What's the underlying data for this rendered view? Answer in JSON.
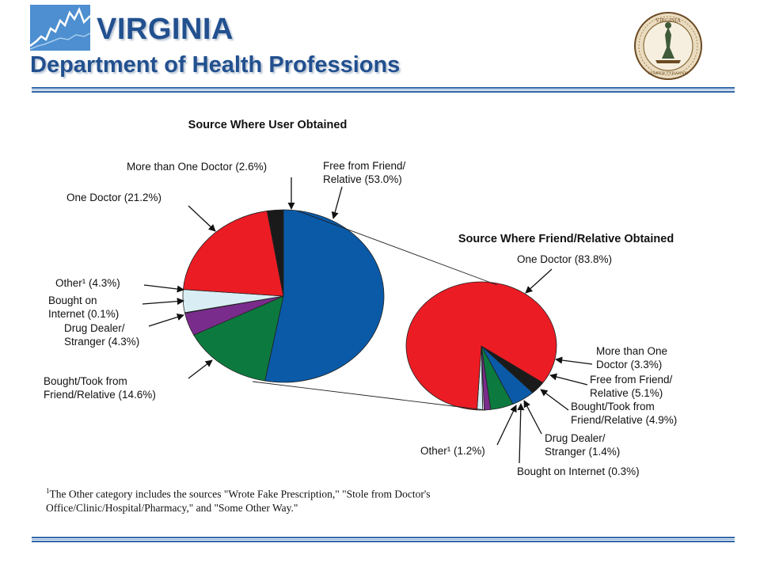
{
  "header": {
    "title": "VIRGINIA",
    "subtitle": "Department of Health Professions",
    "seal_text_top": "VIRGINIA",
    "seal_text_bottom": "SEMPER TYRANNIS"
  },
  "colors": {
    "brand_blue": "#22508f",
    "free_from_friend": "#0a5aa8",
    "one_doctor": "#ec1c24",
    "more_than_one_doctor": "#1a1a1a",
    "other": "#d8eef4",
    "bought_on_internet": "#ffffff",
    "drug_dealer": "#7a2c8c",
    "bought_took_from_friend": "#0c7a3e"
  },
  "chart_data": [
    {
      "type": "pie",
      "title": "Source Where User Obtained",
      "slices": [
        {
          "label": "Free from Friend/ Relative",
          "value": 53.0,
          "text_lines": [
            "Free from Friend/",
            "Relative (53.0%)"
          ],
          "color": "#0a5aa8"
        },
        {
          "label": "Bought/Took from Friend/Relative",
          "value": 14.6,
          "text_lines": [
            "Bought/Took from",
            "Friend/Relative (14.6%)"
          ],
          "color": "#0c7a3e"
        },
        {
          "label": "Drug Dealer/ Stranger",
          "value": 4.3,
          "text_lines": [
            "Drug Dealer/",
            "Stranger (4.3%)"
          ],
          "color": "#7a2c8c"
        },
        {
          "label": "Bought on Internet",
          "value": 0.1,
          "text_lines": [
            "Bought on",
            "Internet (0.1%)"
          ],
          "color": "#ffffff"
        },
        {
          "label": "Other",
          "value": 4.3,
          "text_lines": [
            "Other¹ (4.3%)"
          ],
          "color": "#d8eef4"
        },
        {
          "label": "One Doctor",
          "value": 21.2,
          "text_lines": [
            "One Doctor (21.2%)"
          ],
          "color": "#ec1c24"
        },
        {
          "label": "More than One Doctor",
          "value": 2.6,
          "text_lines": [
            "More than One Doctor (2.6%)"
          ],
          "color": "#1a1a1a"
        }
      ]
    },
    {
      "type": "pie",
      "title": "Source Where Friend/Relative Obtained",
      "slices": [
        {
          "label": "More than One Doctor",
          "value": 3.3,
          "text_lines": [
            "More than One",
            "Doctor (3.3%)"
          ],
          "color": "#1a1a1a"
        },
        {
          "label": "Free from Friend/ Relative",
          "value": 5.1,
          "text_lines": [
            "Free from Friend/",
            "Relative (5.1%)"
          ],
          "color": "#0a5aa8"
        },
        {
          "label": "Bought/Took from Friend/Relative",
          "value": 4.9,
          "text_lines": [
            "Bought/Took from",
            "Friend/Relative (4.9%)"
          ],
          "color": "#0c7a3e"
        },
        {
          "label": "Drug Dealer/ Stranger",
          "value": 1.4,
          "text_lines": [
            "Drug Dealer/",
            "Stranger (1.4%)"
          ],
          "color": "#7a2c8c"
        },
        {
          "label": "Bought on Internet",
          "value": 0.3,
          "text_lines": [
            "Bought on Internet (0.3%)"
          ],
          "color": "#ffffff"
        },
        {
          "label": "Other",
          "value": 1.2,
          "text_lines": [
            "Other¹ (1.2%)"
          ],
          "color": "#d8eef4"
        },
        {
          "label": "One Doctor",
          "value": 83.8,
          "text_lines": [
            "One Doctor (83.8%)"
          ],
          "color": "#ec1c24"
        }
      ]
    }
  ],
  "footnote": {
    "marker": "1",
    "line1": "The Other category includes the sources \"Wrote Fake Prescription,\" \"Stole from Doctor's",
    "line2": "Office/Clinic/Hospital/Pharmacy,\" and \"Some Other Way.\""
  }
}
